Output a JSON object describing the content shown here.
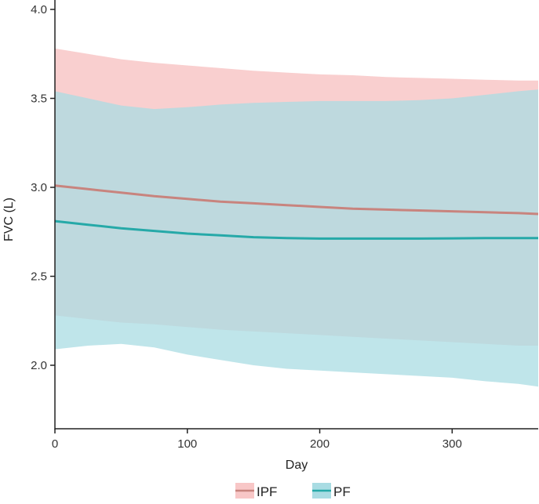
{
  "chart_data": {
    "type": "line",
    "xlabel": "Day",
    "ylabel": "FVC (L)",
    "xlim": [
      0,
      365
    ],
    "ylim": [
      1.75,
      4.0
    ],
    "x_ticks": [
      "0",
      "100",
      "200",
      "300"
    ],
    "y_ticks": [
      "2.0",
      "2.5",
      "3.0",
      "3.5",
      "4.0"
    ],
    "x_tick_values": [
      0,
      100,
      200,
      300
    ],
    "y_tick_values": [
      2.0,
      2.5,
      3.0,
      3.5,
      4.0
    ],
    "grid": false,
    "legend_position": "bottom-center",
    "x": [
      0,
      25,
      50,
      75,
      100,
      125,
      150,
      175,
      200,
      225,
      250,
      275,
      300,
      325,
      350,
      365
    ],
    "series": [
      {
        "name": "IPF",
        "line_color": "#c8847e",
        "band_color": "#f8c7c7",
        "values": [
          3.01,
          2.99,
          2.97,
          2.95,
          2.935,
          2.92,
          2.91,
          2.9,
          2.89,
          2.88,
          2.875,
          2.87,
          2.865,
          2.86,
          2.855,
          2.85
        ],
        "upper": [
          3.78,
          3.75,
          3.72,
          3.7,
          3.685,
          3.67,
          3.655,
          3.645,
          3.635,
          3.63,
          3.62,
          3.615,
          3.61,
          3.605,
          3.6,
          3.6
        ],
        "lower": [
          2.28,
          2.26,
          2.24,
          2.23,
          2.215,
          2.2,
          2.19,
          2.18,
          2.17,
          2.16,
          2.15,
          2.14,
          2.13,
          2.12,
          2.11,
          2.11
        ]
      },
      {
        "name": "PF",
        "line_color": "#26a9a8",
        "band_color": "#a9dce3",
        "values": [
          2.81,
          2.79,
          2.77,
          2.755,
          2.74,
          2.73,
          2.72,
          2.715,
          2.712,
          2.712,
          2.712,
          2.712,
          2.713,
          2.715,
          2.715,
          2.715
        ],
        "upper": [
          3.54,
          3.5,
          3.46,
          3.44,
          3.45,
          3.465,
          3.475,
          3.48,
          3.485,
          3.485,
          3.485,
          3.49,
          3.5,
          3.52,
          3.54,
          3.55
        ],
        "lower": [
          2.09,
          2.11,
          2.12,
          2.1,
          2.06,
          2.03,
          2.0,
          1.98,
          1.97,
          1.96,
          1.95,
          1.94,
          1.93,
          1.91,
          1.895,
          1.88
        ]
      }
    ]
  }
}
